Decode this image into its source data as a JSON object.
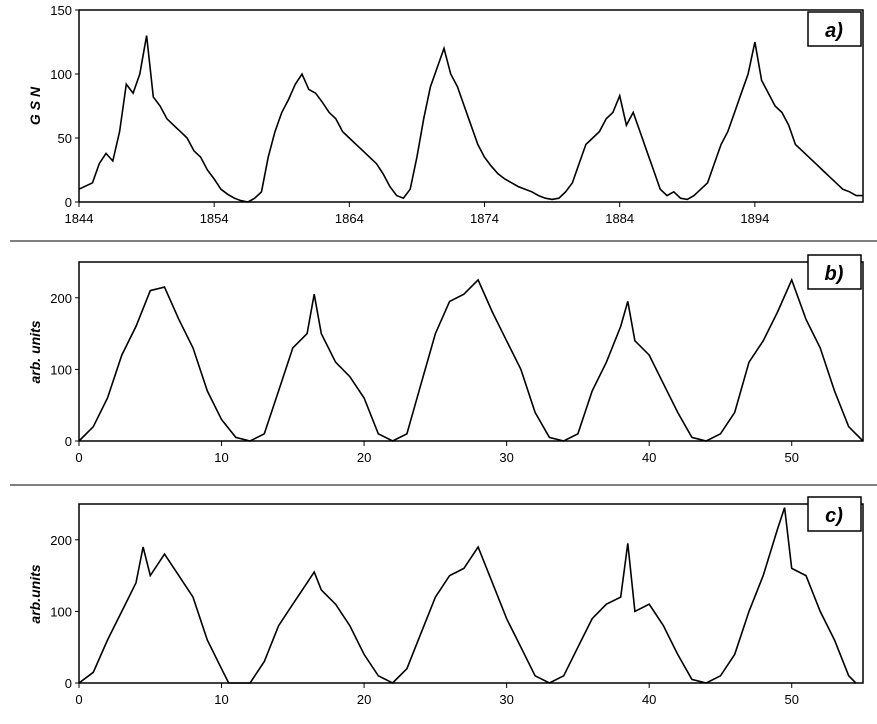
{
  "chart_data": [
    {
      "type": "line",
      "panel_label": "a)",
      "ylabel": "G S N",
      "xlim": [
        1844,
        1902
      ],
      "ylim": [
        0,
        150
      ],
      "xticks": [
        1844,
        1854,
        1864,
        1874,
        1884,
        1894
      ],
      "yticks": [
        0,
        50,
        100,
        150
      ],
      "series": [
        {
          "points": [
            [
              1844,
              10
            ],
            [
              1845,
              15
            ],
            [
              1845.5,
              30
            ],
            [
              1846,
              38
            ],
            [
              1846.5,
              32
            ],
            [
              1847,
              55
            ],
            [
              1847.5,
              92
            ],
            [
              1848,
              85
            ],
            [
              1848.5,
              100
            ],
            [
              1849,
              130
            ],
            [
              1849.5,
              82
            ],
            [
              1850,
              75
            ],
            [
              1850.5,
              65
            ],
            [
              1851,
              60
            ],
            [
              1851.5,
              55
            ],
            [
              1852,
              50
            ],
            [
              1852.5,
              40
            ],
            [
              1853,
              35
            ],
            [
              1853.5,
              25
            ],
            [
              1854,
              18
            ],
            [
              1854.5,
              10
            ],
            [
              1855,
              6
            ],
            [
              1855.5,
              3
            ],
            [
              1856,
              1
            ],
            [
              1856.5,
              0
            ],
            [
              1857,
              3
            ],
            [
              1857.5,
              8
            ],
            [
              1858,
              35
            ],
            [
              1858.5,
              55
            ],
            [
              1859,
              70
            ],
            [
              1859.5,
              80
            ],
            [
              1860,
              92
            ],
            [
              1860.5,
              100
            ],
            [
              1861,
              88
            ],
            [
              1861.5,
              85
            ],
            [
              1862,
              78
            ],
            [
              1862.5,
              70
            ],
            [
              1863,
              65
            ],
            [
              1863.5,
              55
            ],
            [
              1864,
              50
            ],
            [
              1864.5,
              45
            ],
            [
              1865,
              40
            ],
            [
              1865.5,
              35
            ],
            [
              1866,
              30
            ],
            [
              1866.5,
              22
            ],
            [
              1867,
              12
            ],
            [
              1867.5,
              5
            ],
            [
              1868,
              3
            ],
            [
              1868.5,
              10
            ],
            [
              1869,
              35
            ],
            [
              1869.5,
              65
            ],
            [
              1870,
              90
            ],
            [
              1870.5,
              105
            ],
            [
              1871,
              120
            ],
            [
              1871.5,
              100
            ],
            [
              1872,
              90
            ],
            [
              1872.5,
              75
            ],
            [
              1873,
              60
            ],
            [
              1873.5,
              45
            ],
            [
              1874,
              35
            ],
            [
              1874.5,
              28
            ],
            [
              1875,
              22
            ],
            [
              1875.5,
              18
            ],
            [
              1876,
              15
            ],
            [
              1876.5,
              12
            ],
            [
              1877,
              10
            ],
            [
              1877.5,
              8
            ],
            [
              1878,
              5
            ],
            [
              1878.5,
              3
            ],
            [
              1879,
              2
            ],
            [
              1879.5,
              3
            ],
            [
              1880,
              8
            ],
            [
              1880.5,
              15
            ],
            [
              1881,
              30
            ],
            [
              1881.5,
              45
            ],
            [
              1882,
              50
            ],
            [
              1882.5,
              55
            ],
            [
              1883,
              65
            ],
            [
              1883.5,
              70
            ],
            [
              1884,
              83
            ],
            [
              1884.5,
              60
            ],
            [
              1885,
              70
            ],
            [
              1885.5,
              55
            ],
            [
              1886,
              40
            ],
            [
              1886.5,
              25
            ],
            [
              1887,
              10
            ],
            [
              1887.5,
              5
            ],
            [
              1888,
              8
            ],
            [
              1888.5,
              3
            ],
            [
              1889,
              2
            ],
            [
              1889.5,
              5
            ],
            [
              1890,
              10
            ],
            [
              1890.5,
              15
            ],
            [
              1891,
              30
            ],
            [
              1891.5,
              45
            ],
            [
              1892,
              55
            ],
            [
              1892.5,
              70
            ],
            [
              1893,
              85
            ],
            [
              1893.5,
              100
            ],
            [
              1894,
              125
            ],
            [
              1894.5,
              95
            ],
            [
              1895,
              85
            ],
            [
              1895.5,
              75
            ],
            [
              1896,
              70
            ],
            [
              1896.5,
              60
            ],
            [
              1897,
              45
            ],
            [
              1897.5,
              40
            ],
            [
              1898,
              35
            ],
            [
              1898.5,
              30
            ],
            [
              1899,
              25
            ],
            [
              1899.5,
              20
            ],
            [
              1900,
              15
            ],
            [
              1900.5,
              10
            ],
            [
              1901,
              8
            ],
            [
              1901.5,
              5
            ],
            [
              1902,
              5
            ]
          ]
        }
      ]
    },
    {
      "type": "line",
      "panel_label": "b)",
      "ylabel": "arb. units",
      "xlim": [
        0,
        55
      ],
      "ylim": [
        0,
        250
      ],
      "xticks": [
        0,
        10,
        20,
        30,
        40,
        50
      ],
      "yticks": [
        0,
        100,
        200
      ],
      "series": [
        {
          "points": [
            [
              0,
              0
            ],
            [
              1,
              20
            ],
            [
              2,
              60
            ],
            [
              3,
              120
            ],
            [
              4,
              160
            ],
            [
              5,
              210
            ],
            [
              6,
              215
            ],
            [
              7,
              170
            ],
            [
              8,
              130
            ],
            [
              9,
              70
            ],
            [
              10,
              30
            ],
            [
              11,
              5
            ],
            [
              12,
              0
            ],
            [
              13,
              10
            ],
            [
              14,
              70
            ],
            [
              15,
              130
            ],
            [
              16,
              150
            ],
            [
              16.5,
              205
            ],
            [
              17,
              150
            ],
            [
              18,
              110
            ],
            [
              19,
              90
            ],
            [
              20,
              60
            ],
            [
              21,
              10
            ],
            [
              22,
              0
            ],
            [
              23,
              10
            ],
            [
              24,
              80
            ],
            [
              25,
              150
            ],
            [
              26,
              195
            ],
            [
              27,
              205
            ],
            [
              28,
              225
            ],
            [
              29,
              180
            ],
            [
              30,
              140
            ],
            [
              31,
              100
            ],
            [
              32,
              40
            ],
            [
              33,
              5
            ],
            [
              34,
              0
            ],
            [
              35,
              10
            ],
            [
              36,
              70
            ],
            [
              37,
              110
            ],
            [
              38,
              160
            ],
            [
              38.5,
              195
            ],
            [
              39,
              140
            ],
            [
              40,
              120
            ],
            [
              41,
              80
            ],
            [
              42,
              40
            ],
            [
              43,
              5
            ],
            [
              44,
              0
            ],
            [
              45,
              10
            ],
            [
              46,
              40
            ],
            [
              47,
              110
            ],
            [
              48,
              140
            ],
            [
              49,
              180
            ],
            [
              50,
              225
            ],
            [
              51,
              170
            ],
            [
              52,
              130
            ],
            [
              53,
              70
            ],
            [
              54,
              20
            ],
            [
              55,
              0
            ]
          ]
        }
      ]
    },
    {
      "type": "line",
      "panel_label": "c)",
      "ylabel": "arb.units",
      "xlim": [
        0,
        55
      ],
      "ylim": [
        0,
        250
      ],
      "xticks": [
        0,
        10,
        20,
        30,
        40,
        50
      ],
      "yticks": [
        0,
        100,
        200
      ],
      "series": [
        {
          "points": [
            [
              0,
              0
            ],
            [
              1,
              15
            ],
            [
              2,
              60
            ],
            [
              3,
              100
            ],
            [
              4,
              140
            ],
            [
              4.5,
              190
            ],
            [
              5,
              150
            ],
            [
              6,
              180
            ],
            [
              7,
              150
            ],
            [
              8,
              120
            ],
            [
              9,
              60
            ],
            [
              10,
              20
            ],
            [
              10.5,
              0
            ],
            [
              12,
              0
            ],
            [
              13,
              30
            ],
            [
              14,
              80
            ],
            [
              15,
              110
            ],
            [
              16,
              140
            ],
            [
              16.5,
              155
            ],
            [
              17,
              130
            ],
            [
              18,
              110
            ],
            [
              19,
              80
            ],
            [
              20,
              40
            ],
            [
              21,
              10
            ],
            [
              22,
              0
            ],
            [
              23,
              20
            ],
            [
              24,
              70
            ],
            [
              25,
              120
            ],
            [
              26,
              150
            ],
            [
              27,
              160
            ],
            [
              28,
              190
            ],
            [
              29,
              140
            ],
            [
              30,
              90
            ],
            [
              31,
              50
            ],
            [
              32,
              10
            ],
            [
              33,
              0
            ],
            [
              34,
              10
            ],
            [
              35,
              50
            ],
            [
              36,
              90
            ],
            [
              37,
              110
            ],
            [
              38,
              120
            ],
            [
              38.5,
              195
            ],
            [
              39,
              100
            ],
            [
              40,
              110
            ],
            [
              41,
              80
            ],
            [
              42,
              40
            ],
            [
              43,
              5
            ],
            [
              44,
              0
            ],
            [
              45,
              10
            ],
            [
              46,
              40
            ],
            [
              47,
              100
            ],
            [
              48,
              150
            ],
            [
              49,
              215
            ],
            [
              49.5,
              245
            ],
            [
              50,
              160
            ],
            [
              51,
              150
            ],
            [
              52,
              100
            ],
            [
              53,
              60
            ],
            [
              54,
              10
            ],
            [
              54.5,
              0
            ]
          ]
        }
      ]
    }
  ]
}
